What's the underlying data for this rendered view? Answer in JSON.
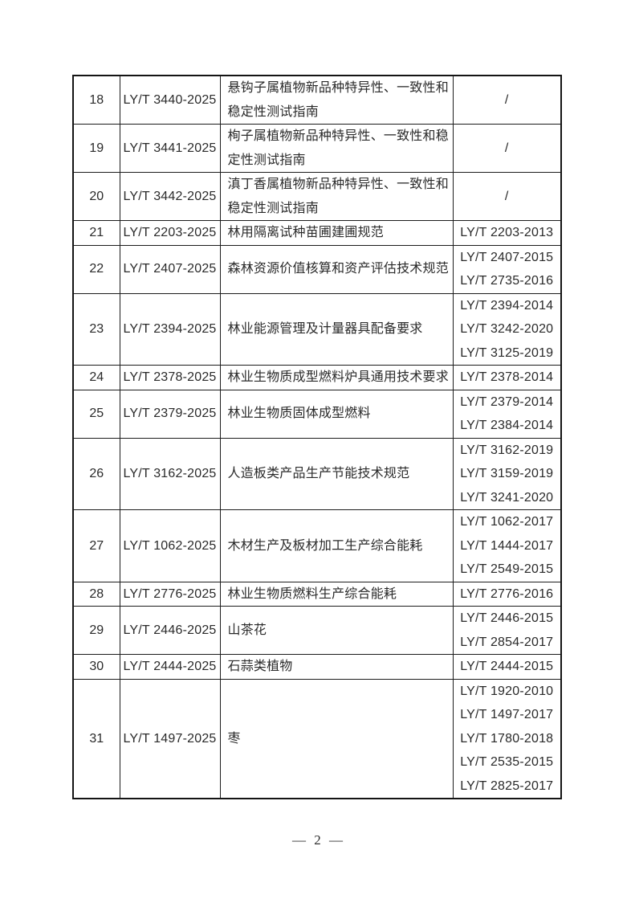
{
  "page": {
    "number_label": "— 2 —"
  },
  "colors": {
    "background": "#ffffff",
    "border": "#1c1c1c",
    "text": "#2a2a2a"
  },
  "table": {
    "rows": [
      {
        "no": "18",
        "code": "LY/T 3440-2025",
        "title": "悬钩子属植物新品种特异性、一致性和稳定性测试指南",
        "replaced": [
          "/"
        ]
      },
      {
        "no": "19",
        "code": "LY/T 3441-2025",
        "title": "栒子属植物新品种特异性、一致性和稳定性测试指南",
        "replaced": [
          "/"
        ]
      },
      {
        "no": "20",
        "code": "LY/T 3442-2025",
        "title": "滇丁香属植物新品种特异性、一致性和稳定性测试指南",
        "replaced": [
          "/"
        ]
      },
      {
        "no": "21",
        "code": "LY/T 2203-2025",
        "title": "林用隔离试种苗圃建圃规范",
        "replaced": [
          "LY/T 2203-2013"
        ]
      },
      {
        "no": "22",
        "code": "LY/T 2407-2025",
        "title": "森林资源价值核算和资产评估技术规范",
        "replaced": [
          "LY/T 2407-2015",
          "LY/T 2735-2016"
        ]
      },
      {
        "no": "23",
        "code": "LY/T 2394-2025",
        "title": "林业能源管理及计量器具配备要求",
        "replaced": [
          "LY/T 2394-2014",
          "LY/T 3242-2020",
          "LY/T 3125-2019"
        ]
      },
      {
        "no": "24",
        "code": "LY/T 2378-2025",
        "title": "林业生物质成型燃料炉具通用技术要求",
        "replaced": [
          "LY/T 2378-2014"
        ]
      },
      {
        "no": "25",
        "code": "LY/T 2379-2025",
        "title": "林业生物质固体成型燃料",
        "replaced": [
          "LY/T 2379-2014",
          "LY/T 2384-2014"
        ]
      },
      {
        "no": "26",
        "code": "LY/T 3162-2025",
        "title": "人造板类产品生产节能技术规范",
        "replaced": [
          "LY/T 3162-2019",
          "LY/T 3159-2019",
          "LY/T 3241-2020"
        ]
      },
      {
        "no": "27",
        "code": "LY/T 1062-2025",
        "title": "木材生产及板材加工生产综合能耗",
        "replaced": [
          "LY/T 1062-2017",
          "LY/T 1444-2017",
          "LY/T 2549-2015"
        ]
      },
      {
        "no": "28",
        "code": "LY/T 2776-2025",
        "title": "林业生物质燃料生产综合能耗",
        "replaced": [
          "LY/T 2776-2016"
        ]
      },
      {
        "no": "29",
        "code": "LY/T 2446-2025",
        "title": "山茶花",
        "replaced": [
          "LY/T 2446-2015",
          "LY/T 2854-2017"
        ]
      },
      {
        "no": "30",
        "code": "LY/T 2444-2025",
        "title": "石蒜类植物",
        "replaced": [
          "LY/T 2444-2015"
        ]
      },
      {
        "no": "31",
        "code": "LY/T 1497-2025",
        "title": "枣",
        "replaced": [
          "LY/T 1920-2010",
          "LY/T 1497-2017",
          "LY/T 1780-2018",
          "LY/T 2535-2015",
          "LY/T 2825-2017"
        ]
      }
    ]
  }
}
